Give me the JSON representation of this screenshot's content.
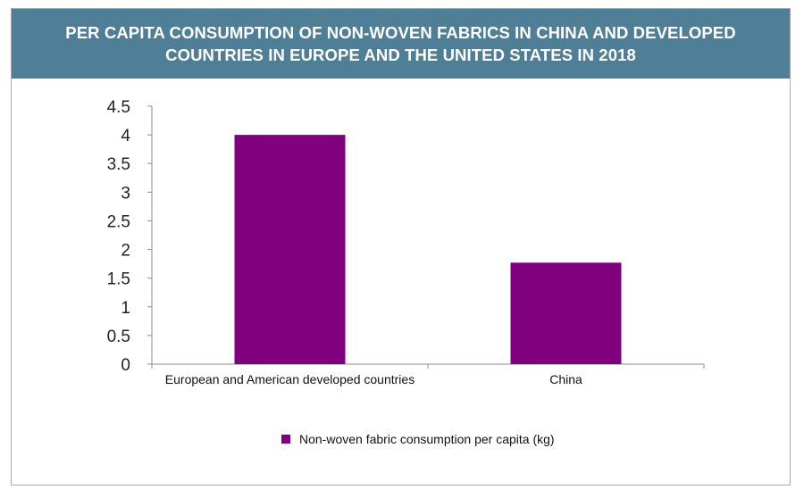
{
  "chart_data": {
    "type": "bar",
    "title": "PER CAPITA CONSUMPTION OF NON-WOVEN FABRICS IN CHINA AND DEVELOPED COUNTRIES IN EUROPE AND THE UNITED STATES IN 2018",
    "categories": [
      "European and American developed countries",
      "China"
    ],
    "series": [
      {
        "name": "Non-woven fabric consumption per capita (kg)",
        "values": [
          4.0,
          1.77
        ]
      }
    ],
    "ylim": [
      0,
      4.5
    ],
    "yticks": [
      "0",
      "0.5",
      "1",
      "1.5",
      "2",
      "2.5",
      "3",
      "3.5",
      "4",
      "4.5"
    ],
    "grid": false,
    "legend_position": "bottom",
    "colors": {
      "bar": "#800080",
      "title_band": "#4f7f97",
      "axis": "#8c8c8c"
    }
  }
}
